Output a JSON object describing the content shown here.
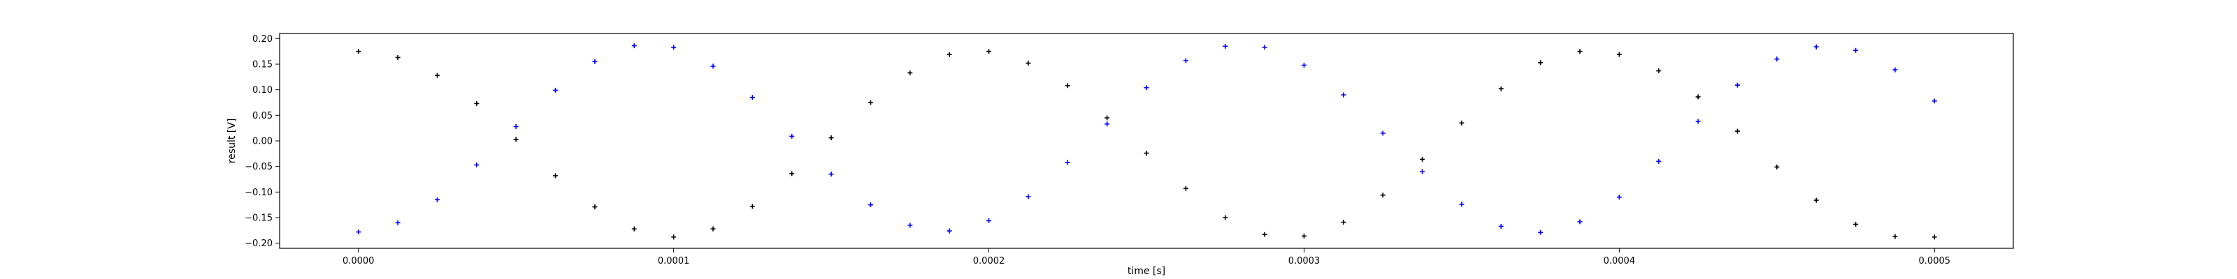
{
  "chart_data": {
    "type": "scatter",
    "title": "",
    "xlabel": "time [s]",
    "ylabel": "result [V]",
    "xlim": [
      -2.5e-05,
      0.000525
    ],
    "ylim": [
      -0.21,
      0.21
    ],
    "xticks": [
      0.0,
      0.0001,
      0.0002,
      0.0003,
      0.0004,
      0.0005
    ],
    "xtick_labels": [
      "0.0000",
      "0.0001",
      "0.0002",
      "0.0003",
      "0.0004",
      "0.0005"
    ],
    "yticks": [
      -0.2,
      -0.15,
      -0.1,
      -0.05,
      0.0,
      0.05,
      0.1,
      0.15,
      0.2
    ],
    "ytick_labels": [
      "−0.20",
      "−0.15",
      "−0.10",
      "−0.05",
      "0.00",
      "0.05",
      "0.10",
      "0.15",
      "0.20"
    ],
    "grid": false,
    "series": [
      {
        "color": "#000000",
        "marker": "plus",
        "x": [
          0.0,
          1.25e-05,
          2.5e-05,
          3.75e-05,
          5e-05,
          6.25e-05,
          7.5e-05,
          8.75e-05,
          0.0001,
          0.0001125,
          0.000125,
          0.0001375,
          0.00015,
          0.0001625,
          0.000175,
          0.0001875,
          0.0002,
          0.0002125,
          0.000225,
          0.0002375,
          0.00025,
          0.0002625,
          0.000275,
          0.0002875,
          0.0003,
          0.0003125,
          0.000325,
          0.0003375,
          0.00035,
          0.0003625,
          0.000375,
          0.0003875,
          0.0004,
          0.0004125,
          0.000425,
          0.0004375,
          0.00045,
          0.0004625,
          0.000475,
          0.0004875,
          0.0005
        ],
        "y": [
          0.175,
          0.163,
          0.128,
          0.073,
          0.003,
          -0.068,
          -0.129,
          -0.172,
          -0.188,
          -0.172,
          -0.128,
          -0.064,
          0.006,
          0.075,
          0.133,
          0.169,
          0.175,
          0.152,
          0.108,
          0.045,
          -0.024,
          -0.093,
          -0.15,
          -0.183,
          -0.186,
          -0.159,
          -0.106,
          -0.036,
          0.035,
          0.102,
          0.153,
          0.175,
          0.169,
          0.137,
          0.086,
          0.019,
          -0.051,
          -0.116,
          -0.163,
          -0.187,
          -0.188
        ]
      },
      {
        "color": "#0000ff",
        "marker": "plus",
        "x": [
          0.0,
          1.25e-05,
          2.5e-05,
          3.75e-05,
          5e-05,
          6.25e-05,
          7.5e-05,
          8.75e-05,
          0.0001,
          0.0001125,
          0.000125,
          0.0001375,
          0.00015,
          0.0001625,
          0.000175,
          0.0001875,
          0.0002,
          0.0002125,
          0.000225,
          0.0002375,
          0.00025,
          0.0002625,
          0.000275,
          0.0002875,
          0.0003,
          0.0003125,
          0.000325,
          0.0003375,
          0.00035,
          0.0003625,
          0.000375,
          0.0003875,
          0.0004,
          0.0004125,
          0.000425,
          0.0004375,
          0.00045,
          0.0004625,
          0.000475,
          0.0004875,
          0.0005
        ],
        "y": [
          -0.178,
          -0.16,
          -0.115,
          -0.047,
          0.028,
          0.099,
          0.155,
          0.186,
          0.183,
          0.146,
          0.085,
          0.009,
          -0.065,
          -0.125,
          -0.165,
          -0.176,
          -0.156,
          -0.109,
          -0.042,
          0.033,
          0.104,
          0.157,
          0.185,
          0.183,
          0.148,
          0.09,
          0.015,
          -0.06,
          -0.124,
          -0.167,
          -0.179,
          -0.158,
          -0.11,
          -0.04,
          0.038,
          0.109,
          0.16,
          0.184,
          0.177,
          0.139,
          0.078
        ]
      }
    ]
  }
}
